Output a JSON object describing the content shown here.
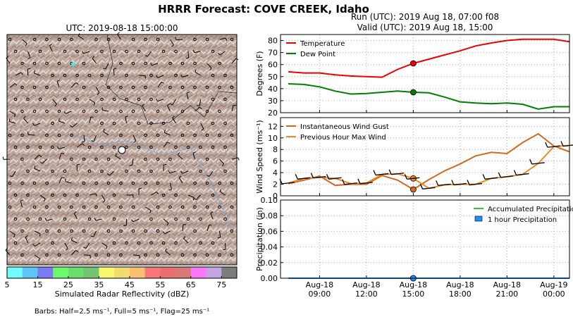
{
  "title": "HRRR Forecast: COVE CREEK, Idaho",
  "map": {
    "title": "UTC: 2019-08-18 15:00:00",
    "colorbar": {
      "label": "Simulated Radar Reflectivity (dBZ)",
      "ticks": [
        5,
        15,
        25,
        35,
        45,
        55,
        65,
        75
      ],
      "colors": [
        "#6ffcfc",
        "#5fc4f8",
        "#7b7cf4",
        "#6cf96c",
        "#6cdc6c",
        "#72c472",
        "#f8f86c",
        "#f0dc70",
        "#f8c070",
        "#f87878",
        "#ea7070",
        "#da7878",
        "#f878f8",
        "#c6a4e4",
        "#7c7c7c"
      ]
    },
    "barb_note": "Barbs: Half=2.5 ms⁻¹, Full=5 ms⁻¹, Flag=25 ms⁻¹"
  },
  "run": "Run (UTC): 2019 Aug 18, 07:00 f08",
  "valid": "Valid (UTC): 2019 Aug 18, 15:00",
  "colors": {
    "temperature": "#ee0000",
    "dew_point": "#007f00",
    "wind_gust": "#d2691e",
    "max_wind": "#ee8c1c",
    "accum_precip": "#2ecc2e",
    "hourly_precip": "#1e90ff"
  },
  "chart_data": [
    {
      "type": "line",
      "ylabel": "Degrees (F)",
      "ylim": [
        20,
        85
      ],
      "yticks": [
        20,
        30,
        40,
        50,
        60,
        70,
        80
      ],
      "x": [
        "2019-08-18 07:00",
        "2019-08-18 08:00",
        "2019-08-18 09:00",
        "2019-08-18 10:00",
        "2019-08-18 11:00",
        "2019-08-18 12:00",
        "2019-08-18 13:00",
        "2019-08-18 14:00",
        "2019-08-18 15:00",
        "2019-08-18 16:00",
        "2019-08-18 17:00",
        "2019-08-18 18:00",
        "2019-08-18 19:00",
        "2019-08-18 20:00",
        "2019-08-18 21:00",
        "2019-08-18 22:00",
        "2019-08-18 23:00",
        "2019-08-19 00:00",
        "2019-08-19 01:00"
      ],
      "series": [
        {
          "name": "Temperature",
          "values": [
            54,
            53,
            53,
            51.5,
            50.5,
            50,
            49.5,
            56,
            61,
            64.5,
            68,
            71.5,
            75.5,
            78,
            80,
            81,
            81,
            81,
            79
          ]
        },
        {
          "name": "Dew Point",
          "values": [
            44,
            43.5,
            41.5,
            38,
            35.5,
            36,
            37,
            38,
            37,
            36.5,
            33,
            29,
            28,
            27.5,
            28,
            27,
            23,
            25,
            25
          ]
        }
      ],
      "highlight_x": "2019-08-18 15:00",
      "legend": "top-left",
      "grid": true
    },
    {
      "type": "line",
      "ylabel": "Wind Speed (ms⁻¹)",
      "ylim": [
        0,
        13.5
      ],
      "yticks": [
        0,
        2,
        4,
        6,
        8,
        10,
        12
      ],
      "series": [
        {
          "name": "Instantaneous Wind Gust",
          "values": [
            2.1,
            2.7,
            3.4,
            1.8,
            2.0,
            2.0,
            3.5,
            2.7,
            1.1,
            2.8,
            4.3,
            5.5,
            6.9,
            7.5,
            7.3,
            9.2,
            10.7,
            8.6,
            7.6
          ]
        },
        {
          "name": "Previous Hour Max Wind",
          "values": [
            2.2,
            3.0,
            3.2,
            3.0,
            2.1,
            2.2,
            3.7,
            3.8,
            3.0,
            1.3,
            1.9,
            2.0,
            2.0,
            3.0,
            3.3,
            3.7,
            5.6,
            8.5,
            8.7
          ]
        }
      ],
      "highlight_x": "2019-08-18 15:00",
      "legend": "top-left",
      "grid": true
    },
    {
      "type": "line",
      "ylabel": "Precipitation (in)",
      "ylim": [
        0,
        0.1
      ],
      "yticks": [
        "0.00",
        "0.02",
        "0.04",
        "0.06",
        "0.08",
        "0.10"
      ],
      "series": [
        {
          "name": "Accumulated Precipitation",
          "values": [
            0,
            0,
            0,
            0,
            0,
            0,
            0,
            0,
            0,
            0,
            0,
            0,
            0,
            0,
            0,
            0,
            0,
            0,
            0
          ]
        },
        {
          "name": "1 hour Precipitation",
          "values": [
            0,
            0,
            0,
            0,
            0,
            0,
            0,
            0,
            0,
            0,
            0,
            0,
            0,
            0,
            0,
            0,
            0,
            0,
            0
          ]
        }
      ],
      "highlight_x": "2019-08-18 15:00",
      "legend": "upper-right",
      "grid": true,
      "x_tick_labels": [
        {
          "date": "Aug-18",
          "time": "09:00",
          "hour": 2
        },
        {
          "date": "Aug-18",
          "time": "12:00",
          "hour": 5
        },
        {
          "date": "Aug-18",
          "time": "15:00",
          "hour": 8
        },
        {
          "date": "Aug-18",
          "time": "18:00",
          "hour": 11
        },
        {
          "date": "Aug-18",
          "time": "21:00",
          "hour": 14
        },
        {
          "date": "Aug-19",
          "time": "00:00",
          "hour": 17
        }
      ]
    }
  ]
}
